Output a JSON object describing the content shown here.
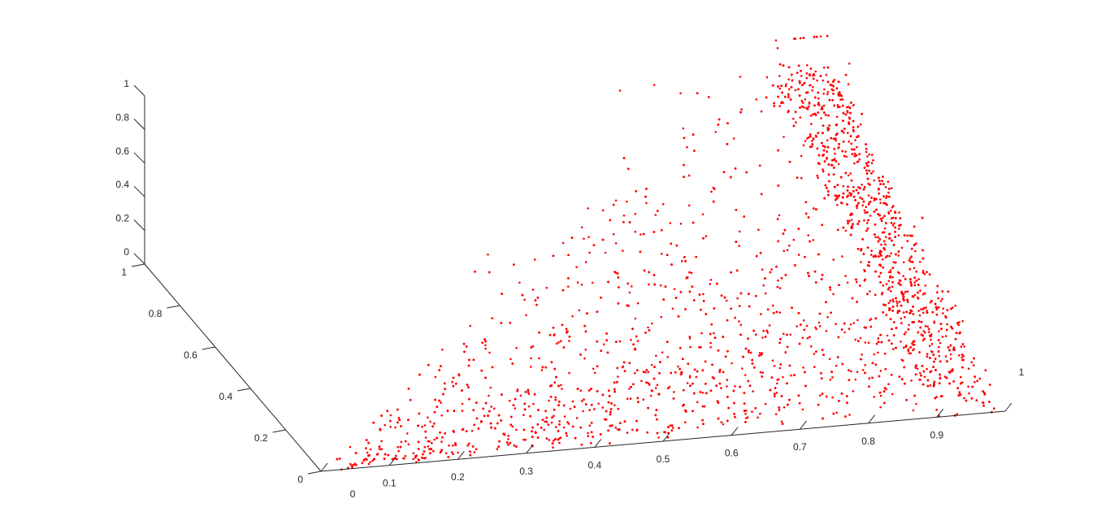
{
  "chart_data": {
    "type": "scatter",
    "title": "",
    "xlabel": "",
    "ylabel": "",
    "zlabel": "",
    "xlim": [
      0,
      1
    ],
    "ylim": [
      0,
      1
    ],
    "zlim": [
      0,
      1
    ],
    "grid": false,
    "marker_color": "#ff0000",
    "x_ticks": [
      "0",
      "0.1",
      "0.2",
      "0.3",
      "0.4",
      "0.5",
      "0.6",
      "0.7",
      "0.8",
      "0.9",
      "1"
    ],
    "y_ticks": [
      "0",
      "0.2",
      "0.4",
      "0.6",
      "0.8",
      "1"
    ],
    "z_ticks": [
      "0",
      "0.2",
      "0.4",
      "0.6",
      "0.8",
      "1"
    ],
    "clusters": [
      {
        "x": 0.03,
        "y": 0.0,
        "z": 0.0
      },
      {
        "x": 0.2,
        "y": 0.05,
        "z": 0.02
      },
      {
        "x": 0.4,
        "y": 0.1,
        "z": 0.05
      },
      {
        "x": 0.6,
        "y": 0.2,
        "z": 0.1
      },
      {
        "x": 0.8,
        "y": 0.3,
        "z": 0.2
      },
      {
        "x": 0.95,
        "y": 0.4,
        "z": 0.3
      },
      {
        "x": 0.98,
        "y": 0.6,
        "z": 0.6
      },
      {
        "x": 0.99,
        "y": 0.85,
        "z": 0.9
      },
      {
        "x": 0.92,
        "y": 0.98,
        "z": 0.98
      },
      {
        "x": 0.35,
        "y": 0.25,
        "z": 0.3
      },
      {
        "x": 0.5,
        "y": 0.4,
        "z": 0.45
      },
      {
        "x": 0.7,
        "y": 0.55,
        "z": 0.6
      },
      {
        "x": 0.85,
        "y": 0.8,
        "z": 0.85
      }
    ]
  }
}
